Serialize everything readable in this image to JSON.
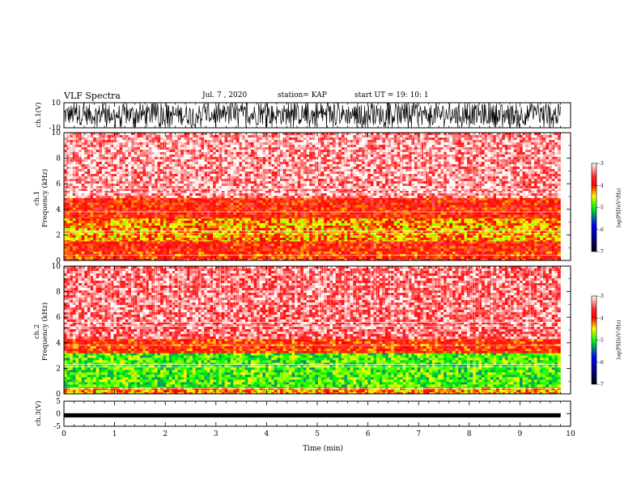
{
  "header": {
    "title": "VLF Spectra",
    "date": "Jul. 7 , 2020",
    "station": "station= KAP",
    "start_ut": "start UT =  19: 10: 1"
  },
  "colors": {
    "axis": "#000000",
    "colorbar_stops": [
      "#ffffff",
      "#ff0000",
      "#ffff00",
      "#00ff00",
      "#0000ff",
      "#000000"
    ]
  },
  "chart_data": [
    {
      "type": "line",
      "panel": "ch1-waveform",
      "ylabel": "ch.1(V)",
      "ylim": [
        -10,
        10
      ],
      "yticks": [
        "10",
        "-10"
      ],
      "xlim": [
        0,
        10
      ],
      "description_values": {
        "typical_amplitude_min": -8,
        "typical_amplitude_max": 9
      }
    },
    {
      "type": "heatmap",
      "panel": "ch1-spectrogram",
      "ylabel_lines": [
        "ch.1",
        "Frequency (kHz)"
      ],
      "ylim": [
        0,
        10
      ],
      "yticks": [
        "0",
        "2",
        "4",
        "6",
        "8",
        "10"
      ],
      "xlim": [
        0,
        10
      ],
      "colorbar": {
        "label": "log(PSD)(V²/Hz)",
        "range": [
          -7,
          -3
        ],
        "ticks": [
          "-3",
          "-4",
          "-5",
          "-6",
          "-7"
        ]
      },
      "bands": [
        {
          "fmin": 0.0,
          "fmax": 0.7,
          "level": -4.0
        },
        {
          "fmin": 0.7,
          "fmax": 1.5,
          "level": -3.9
        },
        {
          "fmin": 1.5,
          "fmax": 3.3,
          "level": -4.3
        },
        {
          "fmin": 3.3,
          "fmax": 4.9,
          "level": -3.9
        },
        {
          "fmin": 4.9,
          "fmax": 10.0,
          "level": -3.3
        }
      ]
    },
    {
      "type": "heatmap",
      "panel": "ch2-spectrogram",
      "ylabel_lines": [
        "ch.2",
        "Frequency (kHz)"
      ],
      "ylim": [
        0,
        10
      ],
      "yticks": [
        "0",
        "2",
        "4",
        "6",
        "8",
        "10"
      ],
      "xlim": [
        0,
        10
      ],
      "colorbar": {
        "label": "log(PSD)(V²/Hz)",
        "range": [
          -7,
          -3
        ],
        "ticks": [
          "-3",
          "-4",
          "-5",
          "-6",
          "-7"
        ]
      },
      "bands": [
        {
          "fmin": 0.0,
          "fmax": 0.5,
          "level": -4.3
        },
        {
          "fmin": 0.5,
          "fmax": 3.2,
          "level": -4.9
        },
        {
          "fmin": 3.2,
          "fmax": 4.3,
          "level": -4.0
        },
        {
          "fmin": 4.3,
          "fmax": 10.0,
          "level": -3.4
        }
      ]
    },
    {
      "type": "line",
      "panel": "ch3-waveform",
      "ylabel": "ch.3(V)",
      "ylim": [
        -5,
        5
      ],
      "yticks": [
        "5",
        "0",
        "-5"
      ],
      "xlim": [
        0,
        10
      ],
      "description_values": {
        "typical_amplitude_min": -1.5,
        "typical_amplitude_max": 0.2
      }
    }
  ],
  "xaxis": {
    "label": "Time (min)",
    "ticks": [
      "0",
      "1",
      "2",
      "3",
      "4",
      "5",
      "6",
      "7",
      "8",
      "9",
      "10"
    ],
    "data_end": 9.8
  }
}
